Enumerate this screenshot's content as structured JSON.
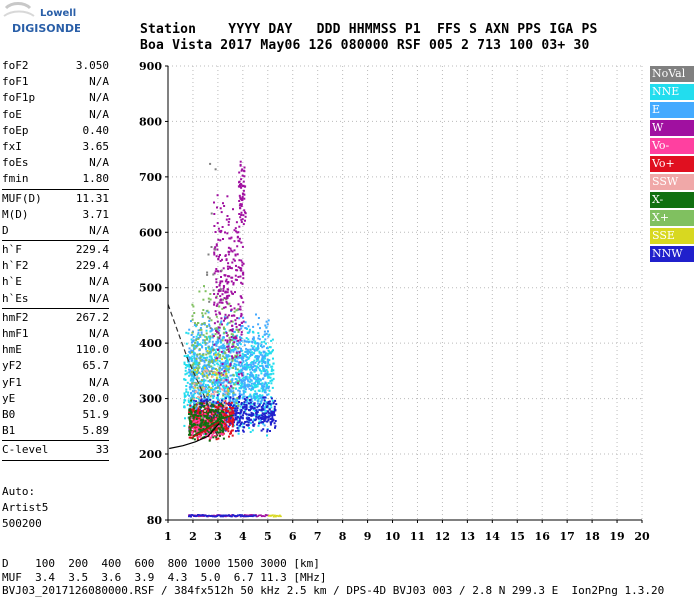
{
  "logo": {
    "line1": "Lowell",
    "line2": "DIGISONDE"
  },
  "header": {
    "line1": "Station    YYYY DAY   DDD HHMMSS P1  FFS S AXN PPS IGA PS",
    "line2": "Boa Vista 2017 May06 126 080000 RSF 005 2 713 100 03+ 30"
  },
  "params": [
    {
      "label": "foF2",
      "value": "3.050"
    },
    {
      "label": "foF1",
      "value": "N/A"
    },
    {
      "label": "foF1p",
      "value": "N/A"
    },
    {
      "label": "foE",
      "value": "N/A"
    },
    {
      "label": "foEp",
      "value": "0.40"
    },
    {
      "label": "fxI",
      "value": "3.65"
    },
    {
      "label": "foEs",
      "value": "N/A"
    },
    {
      "label": "fmin",
      "value": "1.80",
      "sep": true
    },
    {
      "label": "MUF(D)",
      "value": "11.31"
    },
    {
      "label": "M(D)",
      "value": "3.71"
    },
    {
      "label": "D",
      "value": "N/A",
      "sep": true
    },
    {
      "label": "h`F",
      "value": "229.4"
    },
    {
      "label": "h`F2",
      "value": "229.4"
    },
    {
      "label": "h`E",
      "value": "N/A"
    },
    {
      "label": "h`Es",
      "value": "N/A",
      "sep": true
    },
    {
      "label": "hmF2",
      "value": "267.2"
    },
    {
      "label": "hmF1",
      "value": "N/A"
    },
    {
      "label": "hmE",
      "value": "110.0"
    },
    {
      "label": "yF2",
      "value": "65.7"
    },
    {
      "label": "yF1",
      "value": "N/A"
    },
    {
      "label": "yE",
      "value": "20.0"
    },
    {
      "label": "B0",
      "value": "51.9"
    },
    {
      "label": "B1",
      "value": "5.89",
      "sep": true
    },
    {
      "label": "C-level",
      "value": "33",
      "sep": true
    }
  ],
  "autoscale": {
    "line1": "Auto:",
    "line2": "Artist5",
    "line3": "500200"
  },
  "legend": [
    {
      "label": "NoVal",
      "color": "#808080"
    },
    {
      "label": "NNE",
      "color": "#22ddee"
    },
    {
      "label": "E",
      "color": "#44aaff"
    },
    {
      "label": "W",
      "color": "#a010a0"
    },
    {
      "label": "Vo-",
      "color": "#ff40a0"
    },
    {
      "label": "Vo+",
      "color": "#e01020"
    },
    {
      "label": "SSW",
      "color": "#f0a8a8"
    },
    {
      "label": "X-",
      "color": "#107010"
    },
    {
      "label": "X+",
      "color": "#80c060"
    },
    {
      "label": "SSE",
      "color": "#d8d820"
    },
    {
      "label": "NNW",
      "color": "#2020cc"
    }
  ],
  "chart_data": {
    "type": "scatter",
    "xlim": [
      1,
      20
    ],
    "ylim": [
      80,
      900
    ],
    "y_axis_break": [
      80,
      200
    ],
    "x_ticks": [
      1,
      2,
      3,
      4,
      5,
      6,
      7,
      8,
      9,
      10,
      11,
      12,
      13,
      14,
      15,
      16,
      17,
      18,
      19,
      20
    ],
    "y_ticks": [
      80,
      200,
      300,
      400,
      500,
      600,
      700,
      800,
      900
    ],
    "grid": "dotted vertical at each MHz, dotted horizontal every 100 km",
    "clusters": [
      {
        "source": "NNE",
        "color": "#22ddee",
        "x": [
          1.6,
          5.2
        ],
        "y": [
          230,
          440
        ],
        "n": 900
      },
      {
        "source": "E",
        "color": "#44aaff",
        "x": [
          1.8,
          5.0
        ],
        "y": [
          240,
          470
        ],
        "n": 700
      },
      {
        "source": "NNW",
        "color": "#2020cc",
        "x": [
          2.0,
          5.3
        ],
        "y": [
          240,
          310
        ],
        "n": 450
      },
      {
        "source": "Vo+",
        "color": "#e01020",
        "x": [
          1.8,
          3.6
        ],
        "y": [
          225,
          300
        ],
        "n": 450
      },
      {
        "source": "Vo-",
        "color": "#ff40a0",
        "x": [
          1.8,
          3.2
        ],
        "y": [
          225,
          280
        ],
        "n": 140
      },
      {
        "source": "X-",
        "color": "#107010",
        "x": [
          1.8,
          3.2
        ],
        "y": [
          225,
          300
        ],
        "n": 200
      },
      {
        "source": "X+",
        "color": "#80c060",
        "x": [
          1.9,
          3.8
        ],
        "y": [
          250,
          520
        ],
        "n": 200
      },
      {
        "source": "W",
        "color": "#a010a0",
        "x": [
          2.8,
          4.0
        ],
        "y": [
          300,
          690
        ],
        "n": 300
      },
      {
        "source": "W",
        "color": "#a010a0",
        "x": [
          3.8,
          4.1
        ],
        "y": [
          600,
          745
        ],
        "n": 60
      },
      {
        "source": "SSE",
        "color": "#d8d820",
        "x": [
          2.0,
          3.5
        ],
        "y": [
          300,
          400
        ],
        "n": 30
      },
      {
        "source": "SSW",
        "color": "#f0a8a8",
        "x": [
          2.0,
          3.3
        ],
        "y": [
          260,
          360
        ],
        "n": 40
      },
      {
        "source": "NoVal",
        "color": "#808080",
        "x": [
          2.5,
          3.2
        ],
        "y": [
          300,
          810
        ],
        "n": 20
      }
    ],
    "low_trace": [
      {
        "color": "#a010a0",
        "x": [
          1.8,
          5.0
        ],
        "y": [
          80,
          80
        ]
      },
      {
        "color": "#2020cc",
        "x": [
          1.8,
          4.5
        ],
        "y": [
          80,
          80
        ]
      },
      {
        "color": "#d8d820",
        "x": [
          5.0,
          5.5
        ],
        "y": [
          80,
          80
        ]
      }
    ],
    "profile_dashed": {
      "x": [
        1.0,
        1.4,
        1.8,
        2.2,
        2.6,
        2.9,
        3.05
      ],
      "y": [
        470,
        420,
        370,
        330,
        290,
        240,
        229
      ]
    },
    "trace_lower": {
      "x": [
        1.05,
        1.6,
        2.1,
        2.6,
        3.05
      ],
      "y": [
        210,
        215,
        222,
        232,
        255
      ]
    },
    "trace_green": {
      "x": [
        2.0,
        2.2,
        2.5,
        2.8,
        3.05,
        3.6
      ],
      "y": [
        232,
        238,
        245,
        255,
        262,
        270
      ]
    },
    "trace_red": {
      "x": [
        1.9,
        2.1,
        2.4,
        2.7,
        3.05
      ],
      "y": [
        228,
        233,
        240,
        248,
        258
      ]
    }
  },
  "footer": {
    "line1": "D    100  200  400  600  800 1000 1500 3000 [km]",
    "line2": "MUF  3.4  3.5  3.6  3.9  4.3  5.0  6.7 11.3 [MHz]",
    "line3": "BVJ03_2017126080000.RSF / 384fx512h 50 kHz 2.5 km / DPS-4D BVJ03 003 / 2.8 N 299.3 E  Ion2Png 1.3.20"
  }
}
